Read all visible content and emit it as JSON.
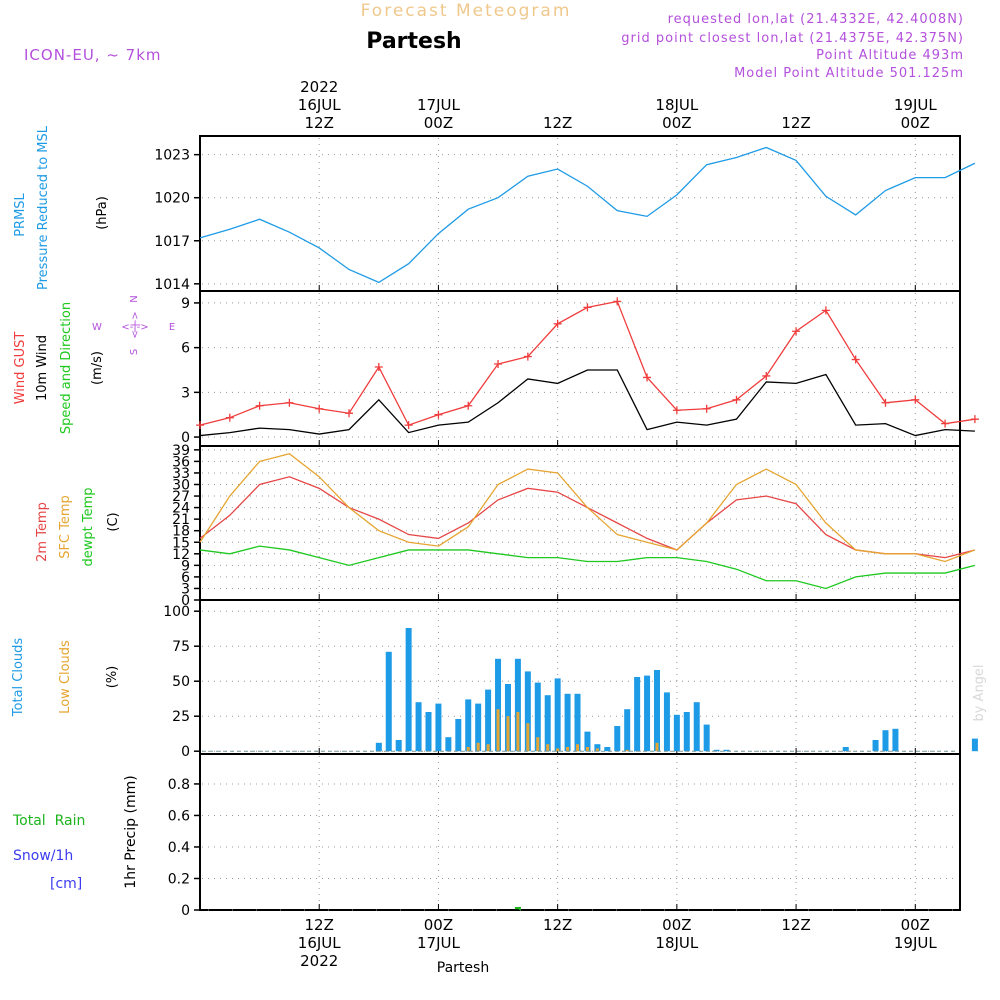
{
  "header": {
    "product": "Forecast Meteogram",
    "location": "Partesh",
    "model": "ICON-EU, ~ 7km",
    "info_lines": [
      "requested lon,lat (21.4332E, 42.4008N)",
      "grid point closest lon,lat (21.4375E, 42.375N)",
      "Point Altitude 493m",
      "Model Point Altitude 501.125m"
    ],
    "credit": "by Angel",
    "footer_location": "Partesh"
  },
  "colors": {
    "pressure": "#1e9be6",
    "gust": "#f03c3c",
    "wind10m": "#000000",
    "t2m": "#e64646",
    "tsfc": "#e6a532",
    "dewpt": "#1ec81e",
    "total_clouds": "#1e9be6",
    "low_clouds": "#e6a532",
    "rain": "#1eb41e",
    "snow": "#3c3cf0",
    "header_info": "#b450dc",
    "title_product": "#f0c88c"
  },
  "chart_data": [
    {
      "id": "pressure",
      "type": "line",
      "label_lines": [
        "PRMSL",
        "Pressure Reduced to MSL"
      ],
      "unit": "(hPa)",
      "x_hours": [
        0,
        3,
        6,
        9,
        12,
        15,
        18,
        21,
        24,
        27,
        30,
        33,
        36,
        39,
        42,
        45,
        48,
        51,
        54,
        57,
        60,
        63,
        66,
        69,
        72,
        75,
        78
      ],
      "series": [
        {
          "key": "pressure",
          "values": [
            1017.2,
            1017.8,
            1018.5,
            1017.6,
            1016.5,
            1015.0,
            1014.1,
            1015.4,
            1017.5,
            1019.2,
            1020.0,
            1021.5,
            1022.0,
            1020.8,
            1019.1,
            1018.7,
            1020.2,
            1022.3,
            1022.8,
            1023.5,
            1022.6,
            1020.1,
            1018.8,
            1020.5,
            1021.4,
            1021.4,
            1022.4
          ]
        }
      ],
      "yticks": [
        1014,
        1017,
        1020,
        1023
      ],
      "ylim": [
        1013.5,
        1024.3
      ]
    },
    {
      "id": "wind",
      "type": "line",
      "label_lines": [
        "Wind GUST",
        "10m Wind",
        "Speed and Direction"
      ],
      "label_colors": [
        "gust",
        "wind10m",
        "dewpt"
      ],
      "unit": "(m/s)",
      "compass": {
        "n": "N",
        "s": "S",
        "w": "W",
        "e": "E",
        "arrow": "<-|->"
      },
      "x_hours": [
        0,
        3,
        6,
        9,
        12,
        15,
        18,
        21,
        24,
        27,
        30,
        33,
        36,
        39,
        42,
        45,
        48,
        51,
        54,
        57,
        60,
        63,
        66,
        69,
        72,
        75,
        78
      ],
      "series": [
        {
          "key": "gust",
          "values": [
            0.8,
            1.3,
            2.1,
            2.3,
            1.9,
            1.6,
            4.7,
            0.8,
            1.5,
            2.1,
            4.9,
            5.4,
            7.6,
            8.7,
            9.1,
            4.0,
            1.8,
            1.9,
            2.5,
            4.1,
            7.1,
            8.5,
            5.2,
            2.3,
            2.5,
            0.9,
            1.2
          ]
        },
        {
          "key": "wind10m",
          "values": [
            0.1,
            0.3,
            0.6,
            0.5,
            0.2,
            0.5,
            2.5,
            0.3,
            0.8,
            1.0,
            2.3,
            3.9,
            3.6,
            4.5,
            4.5,
            0.5,
            1.0,
            0.8,
            1.2,
            3.7,
            3.6,
            4.2,
            0.8,
            0.9,
            0.1,
            0.5,
            0.4
          ]
        }
      ],
      "yticks": [
        0,
        3,
        6,
        9
      ],
      "ylim": [
        -0.6,
        9.8
      ]
    },
    {
      "id": "temperature",
      "type": "line",
      "label_lines": [
        "2m Temp",
        "SFC Temp",
        "dewpt Temp"
      ],
      "label_colors": [
        "t2m",
        "tsfc",
        "dewpt"
      ],
      "unit": "(C)",
      "x_hours": [
        0,
        3,
        6,
        9,
        12,
        15,
        18,
        21,
        24,
        27,
        30,
        33,
        36,
        39,
        42,
        45,
        48,
        51,
        54,
        57,
        60,
        63,
        66,
        69,
        72,
        75,
        78
      ],
      "series": [
        {
          "key": "t2m",
          "values": [
            16,
            22,
            30,
            32,
            29,
            24,
            21,
            17,
            16,
            20,
            26,
            29,
            28,
            24,
            20,
            16,
            13,
            20,
            26,
            27,
            25,
            17,
            13,
            12,
            12,
            11,
            13
          ]
        },
        {
          "key": "tsfc",
          "values": [
            15,
            27,
            36,
            38,
            32,
            24,
            18,
            15,
            14,
            19,
            30,
            34,
            33,
            24,
            17,
            15,
            13,
            20,
            30,
            34,
            30,
            20,
            13,
            12,
            12,
            10,
            13
          ]
        },
        {
          "key": "dewpt",
          "values": [
            13,
            12,
            14,
            13,
            11,
            9,
            11,
            13,
            13,
            13,
            12,
            11,
            11,
            10,
            10,
            11,
            11,
            10,
            8,
            5,
            5,
            3,
            6,
            7,
            7,
            7,
            9
          ]
        }
      ],
      "yticks": [
        0,
        3,
        6,
        9,
        12,
        15,
        18,
        21,
        24,
        27,
        30,
        33,
        36,
        39
      ],
      "ylim": [
        0,
        40
      ]
    },
    {
      "id": "clouds",
      "type": "bar",
      "label_lines": [
        "Total Clouds",
        "Low Clouds"
      ],
      "label_colors": [
        "total_clouds",
        "low_clouds"
      ],
      "unit": "(%)",
      "x_hours": [
        18,
        19,
        20,
        21,
        22,
        23,
        24,
        25,
        26,
        27,
        28,
        29,
        30,
        31,
        32,
        33,
        34,
        35,
        36,
        37,
        38,
        39,
        40,
        41,
        42,
        43,
        44,
        45,
        46,
        47,
        48,
        49,
        50,
        51,
        52,
        53,
        65,
        68,
        69,
        70,
        78
      ],
      "series": [
        {
          "key": "total_clouds",
          "values": [
            6,
            71,
            8,
            88,
            35,
            28,
            34,
            10,
            23,
            37,
            34,
            44,
            66,
            48,
            66,
            57,
            49,
            40,
            52,
            41,
            41,
            14,
            5,
            3,
            18,
            30,
            53,
            54,
            58,
            42,
            26,
            28,
            35,
            19,
            1,
            1,
            3,
            8,
            15,
            16,
            9
          ]
        },
        {
          "key": "low_clouds",
          "values": [
            0,
            0,
            0,
            0,
            0,
            0,
            0,
            0,
            0,
            3,
            6,
            5,
            30,
            25,
            28,
            20,
            10,
            5,
            2,
            3,
            5,
            3,
            2,
            0,
            0,
            1,
            0,
            0,
            6,
            0,
            0,
            0,
            0,
            0,
            0,
            0,
            0,
            0,
            0,
            0,
            0
          ]
        }
      ],
      "yticks": [
        0,
        25,
        50,
        75,
        100
      ],
      "ylim": [
        -2,
        108
      ]
    },
    {
      "id": "precip",
      "type": "bar",
      "label_lines": [
        "Total  Rain",
        "Snow/1h",
        "[cm]"
      ],
      "label_colors": [
        "rain",
        "snow",
        "snow"
      ],
      "ylabel": "1hr Precip (mm)",
      "x_hours": [
        32
      ],
      "series": [
        {
          "key": "rain",
          "values": [
            0.01
          ]
        }
      ],
      "yticks": [
        0,
        0.2,
        0.4,
        0.6,
        0.8
      ],
      "ylim": [
        0,
        0.99
      ]
    }
  ],
  "x_axis": {
    "top_ticks": [
      {
        "hour": 12,
        "lines": [
          "2022",
          "16JUL",
          "12Z"
        ]
      },
      {
        "hour": 24,
        "lines": [
          "17JUL",
          "00Z"
        ]
      },
      {
        "hour": 36,
        "lines": [
          "12Z"
        ]
      },
      {
        "hour": 48,
        "lines": [
          "18JUL",
          "00Z"
        ]
      },
      {
        "hour": 60,
        "lines": [
          "12Z"
        ]
      },
      {
        "hour": 72,
        "lines": [
          "19JUL",
          "00Z"
        ]
      }
    ],
    "bottom_ticks": [
      {
        "hour": 12,
        "lines": [
          "12Z",
          "16JUL",
          "2022"
        ]
      },
      {
        "hour": 24,
        "lines": [
          "00Z",
          "17JUL"
        ]
      },
      {
        "hour": 36,
        "lines": [
          "12Z"
        ]
      },
      {
        "hour": 48,
        "lines": [
          "00Z",
          "18JUL"
        ]
      },
      {
        "hour": 60,
        "lines": [
          "12Z"
        ]
      },
      {
        "hour": 72,
        "lines": [
          "00Z",
          "19JUL"
        ]
      }
    ],
    "xlim_hours": [
      0,
      76.5
    ]
  }
}
